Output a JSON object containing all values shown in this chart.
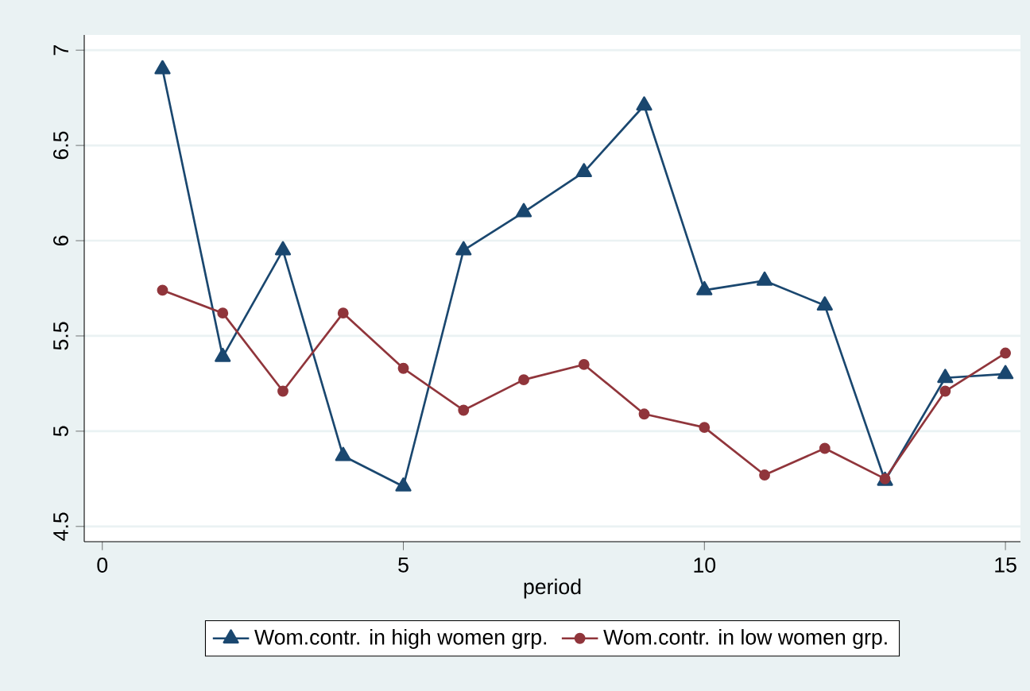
{
  "chart_data": {
    "type": "line",
    "xlabel": "period",
    "x": [
      1,
      2,
      3,
      4,
      5,
      6,
      7,
      8,
      9,
      10,
      11,
      12,
      13,
      14,
      15
    ],
    "series": [
      {
        "name": "Wom.contr. in high women grp.",
        "color": "#1a476f",
        "marker": "triangle",
        "values": [
          6.9,
          5.39,
          5.95,
          4.87,
          4.71,
          5.95,
          6.15,
          6.36,
          6.71,
          5.74,
          5.79,
          5.66,
          4.74,
          5.28,
          5.3
        ]
      },
      {
        "name": "Wom.contr. in low women grp.",
        "color": "#90353b",
        "marker": "circle",
        "values": [
          5.74,
          5.62,
          5.21,
          5.62,
          5.33,
          5.11,
          5.27,
          5.35,
          5.09,
          5.02,
          4.77,
          4.91,
          4.75,
          5.21,
          5.41
        ]
      }
    ],
    "xlim": [
      -0.3,
      15.25
    ],
    "ylim": [
      4.42,
      7.08
    ],
    "xticks": [
      0,
      5,
      10,
      15
    ],
    "yticks": [
      4.5,
      5,
      5.5,
      6,
      6.5,
      7
    ],
    "grid": "y",
    "legend": "bottom",
    "line_style": "solid"
  }
}
